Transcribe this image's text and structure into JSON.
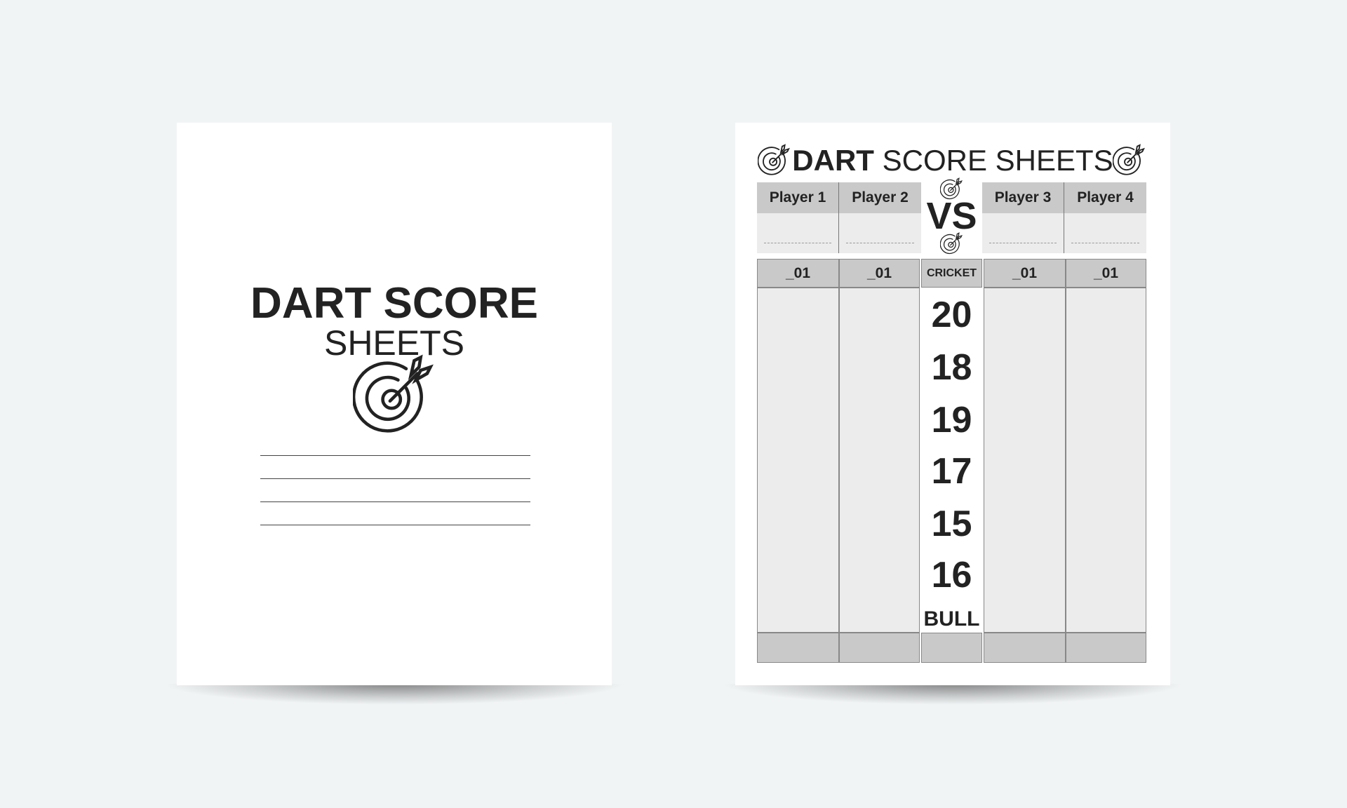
{
  "cover": {
    "title_line1": "DART SCORE",
    "title_line2": "SHEETS",
    "icon": "dart-target-icon",
    "blank_lines": 4
  },
  "sheet": {
    "title_bold": "DART",
    "title_rest": " SCORE SHEETS",
    "players": [
      "Player 1",
      "Player 2",
      "Player 3",
      "Player 4"
    ],
    "vs": "VS",
    "score_headers": [
      "_01",
      "_01",
      "CRICKET",
      "_01",
      "_01"
    ],
    "cricket_numbers": [
      "20",
      "18",
      "19",
      "17",
      "15",
      "16",
      "BULL"
    ]
  },
  "colors": {
    "background": "#f1f4f5",
    "header_gray": "#c9c9c9",
    "cell_gray": "#ececec"
  }
}
